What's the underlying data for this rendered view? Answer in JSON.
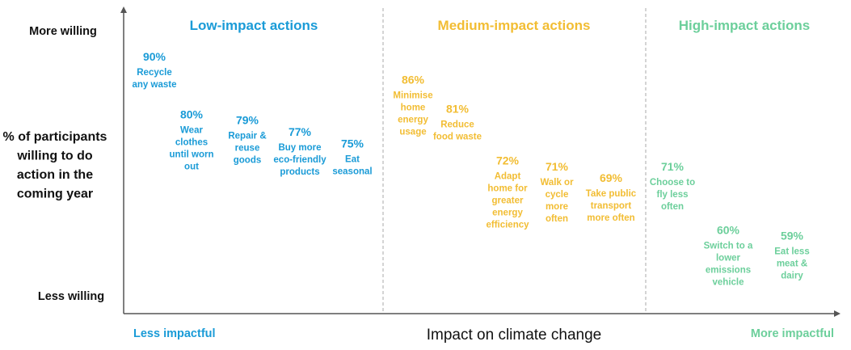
{
  "chart_data": {
    "type": "scatter",
    "y_axis": {
      "label_lines": [
        "% of participants",
        "willing to do",
        "action in the",
        "coming year"
      ],
      "top_label": "More willing",
      "bottom_label": "Less willing"
    },
    "x_axis": {
      "label": "Impact on climate change",
      "left_label": "Less impactful",
      "right_label": "More impactful"
    },
    "groups": [
      {
        "name": "Low-impact actions",
        "color": "#1a9bd7"
      },
      {
        "name": "Medium-impact actions",
        "color": "#f2bd33"
      },
      {
        "name": "High-impact actions",
        "color": "#6ccf9b"
      }
    ],
    "points": [
      {
        "group": 0,
        "value": "90%",
        "lines": [
          "Recycle",
          "any waste"
        ],
        "pct": 90
      },
      {
        "group": 0,
        "value": "80%",
        "lines": [
          "Wear",
          "clothes",
          "until worn",
          "out"
        ],
        "pct": 80
      },
      {
        "group": 0,
        "value": "79%",
        "lines": [
          "Repair &",
          "reuse",
          "goods"
        ],
        "pct": 79
      },
      {
        "group": 0,
        "value": "77%",
        "lines": [
          "Buy more",
          "eco-friendly",
          "products"
        ],
        "pct": 77
      },
      {
        "group": 0,
        "value": "75%",
        "lines": [
          "Eat",
          "seasonal"
        ],
        "pct": 75
      },
      {
        "group": 1,
        "value": "86%",
        "lines": [
          "Minimise",
          "home",
          "energy",
          "usage"
        ],
        "pct": 86
      },
      {
        "group": 1,
        "value": "81%",
        "lines": [
          "Reduce",
          "food waste"
        ],
        "pct": 81
      },
      {
        "group": 1,
        "value": "72%",
        "lines": [
          "Adapt",
          "home for",
          "greater",
          "energy",
          "efficiency"
        ],
        "pct": 72
      },
      {
        "group": 1,
        "value": "71%",
        "lines": [
          "Walk or",
          "cycle",
          "more",
          "often"
        ],
        "pct": 71
      },
      {
        "group": 1,
        "value": "69%",
        "lines": [
          "Take public",
          "transport",
          "more often"
        ],
        "pct": 69
      },
      {
        "group": 2,
        "value": "71%",
        "lines": [
          "Choose to",
          "fly less",
          "often"
        ],
        "pct": 71
      },
      {
        "group": 2,
        "value": "60%",
        "lines": [
          "Switch to a",
          "lower",
          "emissions",
          "vehicle"
        ],
        "pct": 60
      },
      {
        "group": 2,
        "value": "59%",
        "lines": [
          "Eat less",
          "meat &",
          "dairy"
        ],
        "pct": 59
      }
    ]
  }
}
